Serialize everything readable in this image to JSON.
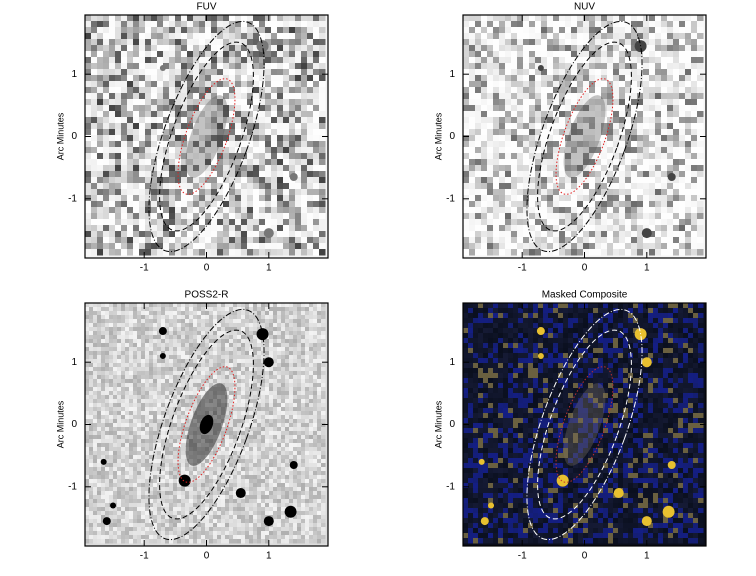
{
  "chart_data": [
    {
      "type": "image",
      "title": "FUV",
      "ylabel": "Arc Minutes",
      "xlim": [
        -1.95,
        1.95
      ],
      "ylim": [
        -1.95,
        1.95
      ],
      "xticks": [
        -1,
        0,
        1
      ],
      "yticks": [
        -1,
        0,
        1
      ]
    },
    {
      "type": "image",
      "title": "NUV",
      "ylabel": "Arc Minutes",
      "xlim": [
        -1.95,
        1.95
      ],
      "ylim": [
        -1.95,
        1.95
      ],
      "xticks": [
        -1,
        0,
        1
      ],
      "yticks": [
        -1,
        0,
        1
      ]
    },
    {
      "type": "image",
      "title": "POSS2-R",
      "ylabel": "Arc Minutes",
      "xlim": [
        -1.95,
        1.95
      ],
      "ylim": [
        -1.95,
        1.95
      ],
      "xticks": [
        -1,
        0,
        1
      ],
      "yticks": [
        -1,
        0,
        1
      ]
    },
    {
      "type": "image",
      "title": "Masked Composite",
      "ylabel": "Arc Minutes",
      "xlim": [
        -1.95,
        1.95
      ],
      "ylim": [
        -1.95,
        1.95
      ],
      "xticks": [
        -1,
        0,
        1
      ],
      "yticks": [
        -1,
        0,
        1
      ]
    }
  ]
}
